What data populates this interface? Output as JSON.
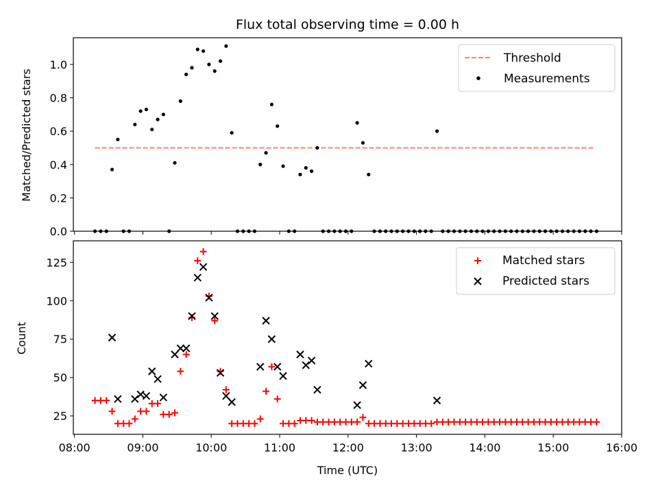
{
  "figure_title": "Flux total observing time = 0.00 h",
  "colors": {
    "threshold": "#ff7f7f",
    "measurements": "#000000",
    "matched": "#ff0000",
    "predicted": "#000000"
  },
  "chart_data": [
    {
      "type": "scatter",
      "title": "Flux total observing time = 0.00 h",
      "xlabel": "",
      "ylabel": "Matched/Predicted stars",
      "xlim": [
        "07:59",
        "16:00"
      ],
      "ylim": [
        0,
        1.16
      ],
      "yticks": [
        0.0,
        0.2,
        0.4,
        0.6,
        0.8,
        1.0
      ],
      "ytick_labels": [
        "0.0",
        "0.2",
        "0.4",
        "0.6",
        "0.8",
        "1.0"
      ],
      "legend_position": "top-right",
      "legend": [
        "Threshold",
        "Measurements"
      ],
      "threshold": {
        "name": "Threshold",
        "y": 0.5,
        "x_range": [
          "08:18",
          "15:37"
        ],
        "style": "dashed"
      },
      "series": [
        {
          "name": "Measurements",
          "marker": "dot",
          "points": [
            [
              "08:18",
              0
            ],
            [
              "08:23",
              0
            ],
            [
              "08:28",
              0
            ],
            [
              "08:33",
              0.37
            ],
            [
              "08:38",
              0.55
            ],
            [
              "08:43",
              0
            ],
            [
              "08:48",
              0
            ],
            [
              "08:53",
              0.64
            ],
            [
              "08:58",
              0.72
            ],
            [
              "09:03",
              0.73
            ],
            [
              "09:08",
              0.61
            ],
            [
              "09:13",
              0.67
            ],
            [
              "09:18",
              0.7
            ],
            [
              "09:23",
              0
            ],
            [
              "09:28",
              0.41
            ],
            [
              "09:33",
              0.78
            ],
            [
              "09:38",
              0.94
            ],
            [
              "09:43",
              0.98
            ],
            [
              "09:48",
              1.09
            ],
            [
              "09:53",
              1.08
            ],
            [
              "09:58",
              1.0
            ],
            [
              "10:03",
              0.96
            ],
            [
              "10:08",
              1.02
            ],
            [
              "10:13",
              1.11
            ],
            [
              "10:18",
              0.59
            ],
            [
              "10:23",
              0
            ],
            [
              "10:28",
              0
            ],
            [
              "10:33",
              0
            ],
            [
              "10:38",
              0
            ],
            [
              "10:43",
              0.4
            ],
            [
              "10:48",
              0.47
            ],
            [
              "10:53",
              0.76
            ],
            [
              "10:58",
              0.63
            ],
            [
              "11:03",
              0.39
            ],
            [
              "11:08",
              0
            ],
            [
              "11:13",
              0
            ],
            [
              "11:18",
              0.34
            ],
            [
              "11:23",
              0.38
            ],
            [
              "11:28",
              0.36
            ],
            [
              "11:33",
              0.5
            ],
            [
              "11:38",
              0
            ],
            [
              "11:43",
              0
            ],
            [
              "11:48",
              0
            ],
            [
              "11:53",
              0
            ],
            [
              "11:58",
              0
            ],
            [
              "12:03",
              0
            ],
            [
              "12:08",
              0.65
            ],
            [
              "12:13",
              0.53
            ],
            [
              "12:18",
              0.34
            ],
            [
              "12:23",
              0
            ],
            [
              "12:28",
              0
            ],
            [
              "12:33",
              0
            ],
            [
              "12:38",
              0
            ],
            [
              "12:43",
              0
            ],
            [
              "12:48",
              0
            ],
            [
              "12:53",
              0
            ],
            [
              "12:58",
              0
            ],
            [
              "13:03",
              0
            ],
            [
              "13:08",
              0
            ],
            [
              "13:13",
              0
            ],
            [
              "13:18",
              0.6
            ],
            [
              "13:23",
              0
            ],
            [
              "13:28",
              0
            ],
            [
              "13:33",
              0
            ],
            [
              "13:38",
              0
            ],
            [
              "13:43",
              0
            ],
            [
              "13:48",
              0
            ],
            [
              "13:53",
              0
            ],
            [
              "13:58",
              0
            ],
            [
              "14:03",
              0
            ],
            [
              "14:08",
              0
            ],
            [
              "14:13",
              0
            ],
            [
              "14:18",
              0
            ],
            [
              "14:23",
              0
            ],
            [
              "14:28",
              0
            ],
            [
              "14:33",
              0
            ],
            [
              "14:38",
              0
            ],
            [
              "14:43",
              0
            ],
            [
              "14:48",
              0
            ],
            [
              "14:53",
              0
            ],
            [
              "14:58",
              0
            ],
            [
              "15:03",
              0
            ],
            [
              "15:08",
              0
            ],
            [
              "15:13",
              0
            ],
            [
              "15:18",
              0
            ],
            [
              "15:23",
              0
            ],
            [
              "15:28",
              0
            ],
            [
              "15:33",
              0
            ],
            [
              "15:38",
              0
            ]
          ]
        }
      ]
    },
    {
      "type": "scatter",
      "title": "",
      "xlabel": "Time (UTC)",
      "ylabel": "Count",
      "xlim": [
        "07:59",
        "16:00"
      ],
      "ylim": [
        13,
        139
      ],
      "xticks": [
        "08:00",
        "09:00",
        "10:00",
        "11:00",
        "12:00",
        "13:00",
        "14:00",
        "15:00",
        "16:00"
      ],
      "yticks": [
        25,
        50,
        75,
        100,
        125
      ],
      "ytick_labels": [
        "25",
        "50",
        "75",
        "100",
        "125"
      ],
      "legend_position": "top-right",
      "legend": [
        "Matched stars",
        "Predicted stars"
      ],
      "series": [
        {
          "name": "Matched stars",
          "marker": "plus",
          "points": [
            [
              "08:18",
              35
            ],
            [
              "08:23",
              35
            ],
            [
              "08:28",
              35
            ],
            [
              "08:33",
              28
            ],
            [
              "08:38",
              20
            ],
            [
              "08:43",
              20
            ],
            [
              "08:48",
              20
            ],
            [
              "08:53",
              23
            ],
            [
              "08:58",
              28
            ],
            [
              "09:03",
              28
            ],
            [
              "09:08",
              33
            ],
            [
              "09:13",
              33
            ],
            [
              "09:18",
              26
            ],
            [
              "09:23",
              26
            ],
            [
              "09:28",
              27
            ],
            [
              "09:33",
              54
            ],
            [
              "09:38",
              65
            ],
            [
              "09:43",
              89
            ],
            [
              "09:48",
              126
            ],
            [
              "09:53",
              132
            ],
            [
              "09:58",
              103
            ],
            [
              "10:03",
              87
            ],
            [
              "10:08",
              54
            ],
            [
              "10:13",
              42
            ],
            [
              "10:18",
              20
            ],
            [
              "10:23",
              20
            ],
            [
              "10:28",
              20
            ],
            [
              "10:33",
              20
            ],
            [
              "10:38",
              20
            ],
            [
              "10:43",
              23
            ],
            [
              "10:48",
              41
            ],
            [
              "10:53",
              57
            ],
            [
              "10:58",
              36
            ],
            [
              "11:03",
              20
            ],
            [
              "11:08",
              20
            ],
            [
              "11:13",
              20
            ],
            [
              "11:18",
              22
            ],
            [
              "11:23",
              22
            ],
            [
              "11:28",
              22
            ],
            [
              "11:33",
              21
            ],
            [
              "11:38",
              21
            ],
            [
              "11:43",
              21
            ],
            [
              "11:48",
              21
            ],
            [
              "11:53",
              21
            ],
            [
              "11:58",
              21
            ],
            [
              "12:03",
              21
            ],
            [
              "12:08",
              21
            ],
            [
              "12:13",
              24
            ],
            [
              "12:18",
              20
            ],
            [
              "12:23",
              20
            ],
            [
              "12:28",
              20
            ],
            [
              "12:33",
              20
            ],
            [
              "12:38",
              20
            ],
            [
              "12:43",
              20
            ],
            [
              "12:48",
              20
            ],
            [
              "12:53",
              20
            ],
            [
              "12:58",
              20
            ],
            [
              "13:03",
              20
            ],
            [
              "13:08",
              20
            ],
            [
              "13:13",
              20
            ],
            [
              "13:18",
              21
            ],
            [
              "13:23",
              21
            ],
            [
              "13:28",
              21
            ],
            [
              "13:33",
              21
            ],
            [
              "13:38",
              21
            ],
            [
              "13:43",
              21
            ],
            [
              "13:48",
              21
            ],
            [
              "13:53",
              21
            ],
            [
              "13:58",
              21
            ],
            [
              "14:03",
              21
            ],
            [
              "14:08",
              21
            ],
            [
              "14:13",
              21
            ],
            [
              "14:18",
              21
            ],
            [
              "14:23",
              21
            ],
            [
              "14:28",
              21
            ],
            [
              "14:33",
              21
            ],
            [
              "14:38",
              21
            ],
            [
              "14:43",
              21
            ],
            [
              "14:48",
              21
            ],
            [
              "14:53",
              21
            ],
            [
              "14:58",
              21
            ],
            [
              "15:03",
              21
            ],
            [
              "15:08",
              21
            ],
            [
              "15:13",
              21
            ],
            [
              "15:18",
              21
            ],
            [
              "15:23",
              21
            ],
            [
              "15:28",
              21
            ],
            [
              "15:33",
              21
            ],
            [
              "15:38",
              21
            ]
          ]
        },
        {
          "name": "Predicted stars",
          "marker": "x",
          "points": [
            [
              "08:33",
              76
            ],
            [
              "08:38",
              36
            ],
            [
              "08:53",
              36
            ],
            [
              "08:58",
              39
            ],
            [
              "09:03",
              38
            ],
            [
              "09:08",
              54
            ],
            [
              "09:13",
              49
            ],
            [
              "09:18",
              37
            ],
            [
              "09:28",
              65
            ],
            [
              "09:33",
              69
            ],
            [
              "09:38",
              69
            ],
            [
              "09:43",
              90
            ],
            [
              "09:48",
              115
            ],
            [
              "09:53",
              122
            ],
            [
              "09:58",
              102
            ],
            [
              "10:03",
              90
            ],
            [
              "10:08",
              53
            ],
            [
              "10:13",
              38
            ],
            [
              "10:18",
              34
            ],
            [
              "10:43",
              57
            ],
            [
              "10:48",
              87
            ],
            [
              "10:53",
              75
            ],
            [
              "10:58",
              57
            ],
            [
              "11:03",
              51
            ],
            [
              "11:18",
              65
            ],
            [
              "11:23",
              58
            ],
            [
              "11:28",
              61
            ],
            [
              "11:33",
              42
            ],
            [
              "12:08",
              32
            ],
            [
              "12:13",
              45
            ],
            [
              "12:18",
              59
            ],
            [
              "13:18",
              35
            ]
          ]
        }
      ]
    }
  ]
}
